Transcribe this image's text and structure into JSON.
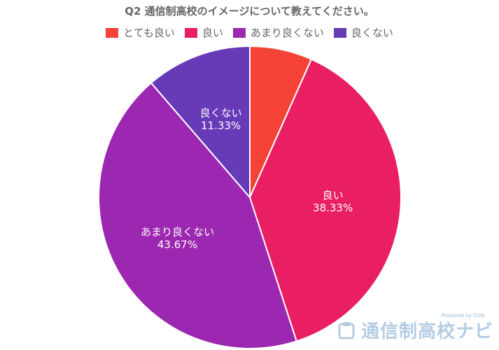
{
  "chart_data": {
    "type": "pie",
    "title": "Q2 通信制高校のイメージについて教えてください。",
    "categories": [
      "とても良い",
      "良い",
      "あまり良くない",
      "良くない"
    ],
    "values": [
      6.67,
      38.33,
      43.67,
      11.33
    ],
    "slice_labels": [
      {
        "name": "",
        "value": ""
      },
      {
        "name": "良い",
        "value": "38.33%"
      },
      {
        "name": "あまり良くない",
        "value": "43.67%"
      },
      {
        "name": "良くない",
        "value": "11.33%"
      }
    ],
    "colors": [
      "#f44336",
      "#e91e63",
      "#9c27b0",
      "#673ab7"
    ],
    "legend_position": "top"
  },
  "watermark": {
    "credit": "Produced by CIGK",
    "brand": "通信制高校ナビ",
    "icon": "clipboard-icon"
  }
}
